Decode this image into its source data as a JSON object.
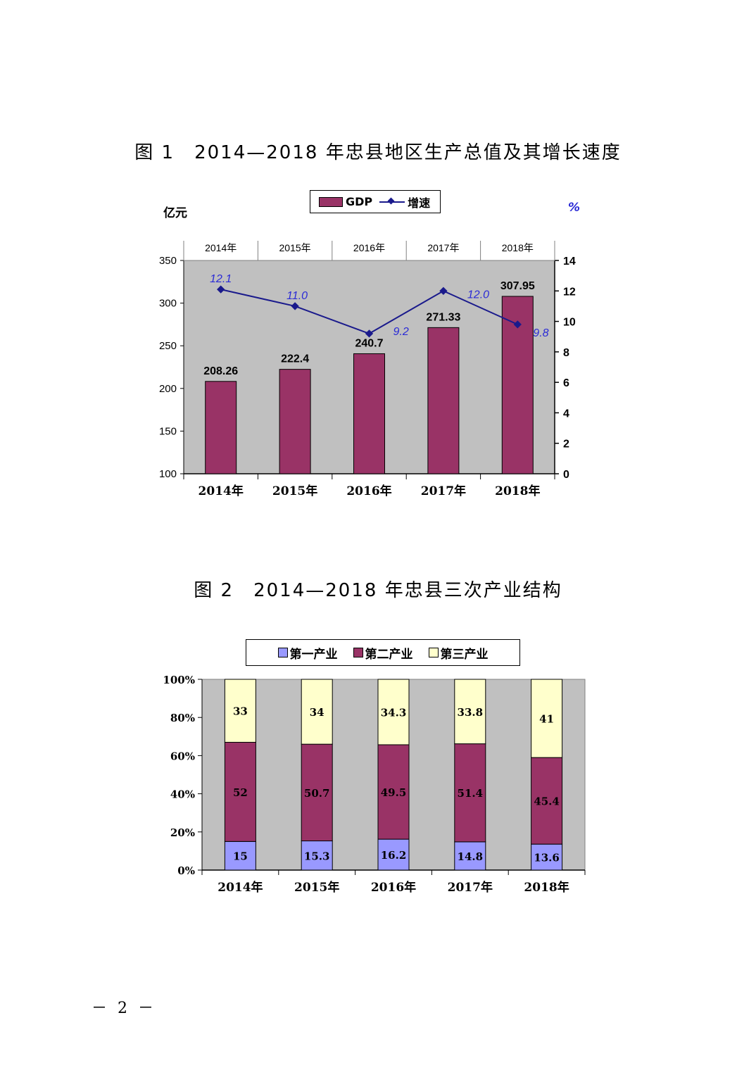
{
  "page_number": "－ 2 －",
  "figure1": {
    "title": "图 1　2014—2018 年忠县地区生产总值及其增长速度",
    "legend": {
      "bar": "GDP",
      "line": "增速"
    },
    "unit_left": "亿元",
    "unit_right": "%",
    "colors": {
      "bar": "#993366",
      "line": "#1a1a8c",
      "plot_bg": "#c0c0c0",
      "line_label": "#2b2bd6"
    }
  },
  "figure2": {
    "title": "图 2　2014—2018 年忠县三次产业结构",
    "colors": {
      "primary": "#9999ff",
      "secondary": "#993366",
      "tertiary": "#ffffcc",
      "plot_bg": "#c0c0c0"
    }
  },
  "chart_data": [
    {
      "type": "bar",
      "title": "图 1　2014—2018 年忠县地区生产总值及其增长速度",
      "categories": [
        "2014年",
        "2015年",
        "2016年",
        "2017年",
        "2018年"
      ],
      "top_categories": [
        "2014年",
        "2015年",
        "2016年",
        "2017年",
        "2018年"
      ],
      "series": [
        {
          "name": "GDP",
          "type": "bar",
          "axis": "left",
          "values": [
            208.26,
            222.4,
            240.7,
            271.33,
            307.95
          ],
          "labels": [
            "208.26",
            "222.4",
            "240.7",
            "271.33",
            "307.95"
          ]
        },
        {
          "name": "增速",
          "type": "line",
          "axis": "right",
          "values": [
            12.1,
            11.0,
            9.2,
            12.0,
            9.8
          ],
          "labels": [
            "12.1",
            "11.0",
            "9.2",
            "12.0",
            "9.8"
          ]
        }
      ],
      "ylabel": "亿元",
      "y2label": "%",
      "ylim": [
        100,
        350
      ],
      "yticks": [
        "100",
        "150",
        "200",
        "250",
        "300",
        "350"
      ],
      "y2lim": [
        0,
        14
      ],
      "y2ticks": [
        "0",
        "2",
        "4",
        "6",
        "8",
        "10",
        "12",
        "14"
      ],
      "grid": false,
      "legend_position": "top"
    },
    {
      "type": "bar",
      "stacked": "percent",
      "title": "图 2　2014—2018 年忠县三次产业结构",
      "categories": [
        "2014年",
        "2015年",
        "2016年",
        "2017年",
        "2018年"
      ],
      "series": [
        {
          "name": "第一产业",
          "values": [
            15,
            15.3,
            16.2,
            14.8,
            13.6
          ],
          "labels": [
            "15",
            "15.3",
            "16.2",
            "14.8",
            "13.6"
          ]
        },
        {
          "name": "第二产业",
          "values": [
            52,
            50.7,
            49.5,
            51.4,
            45.4
          ],
          "labels": [
            "52",
            "50.7",
            "49.5",
            "51.4",
            "45.4"
          ]
        },
        {
          "name": "第三产业",
          "values": [
            33,
            34,
            34.3,
            33.8,
            41
          ],
          "labels": [
            "33",
            "34",
            "34.3",
            "33.8",
            "41"
          ]
        }
      ],
      "ylim": [
        0,
        100
      ],
      "yticks": [
        "0%",
        "20%",
        "40%",
        "60%",
        "80%",
        "100%"
      ],
      "grid": false,
      "legend_position": "top"
    }
  ]
}
